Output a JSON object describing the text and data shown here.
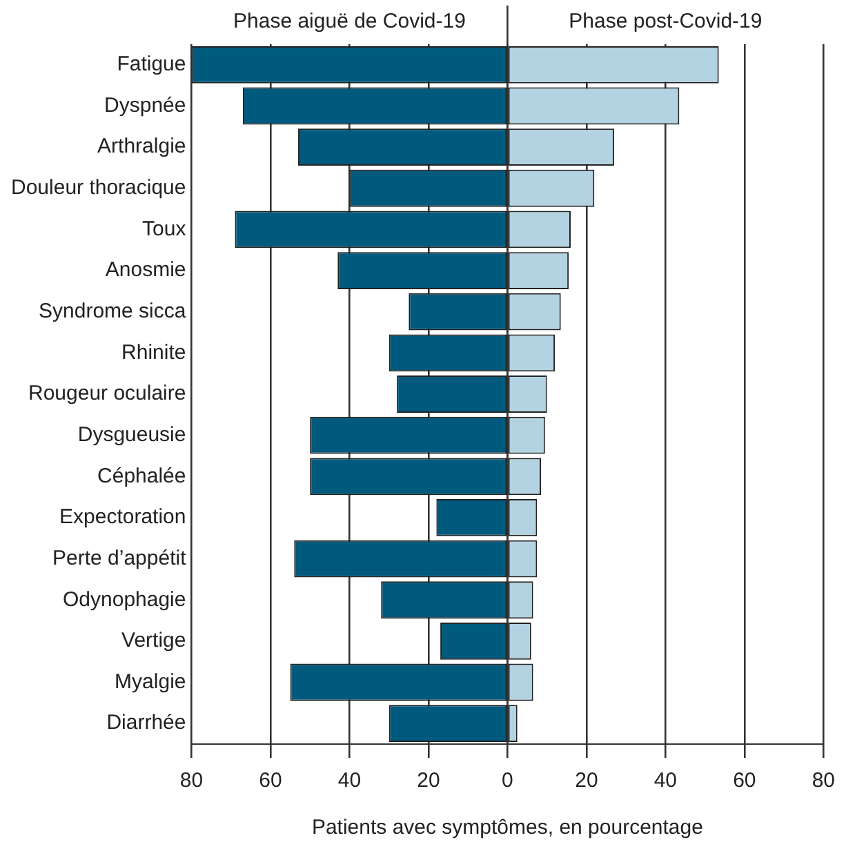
{
  "chart_data": {
    "type": "bar",
    "orientation": "horizontal",
    "stacked": true,
    "xlabel": "Patients avec symptômes, en pourcentage",
    "categories": [
      "Fatigue",
      "Dyspnée",
      "Arthralgie",
      "Douleur thoracique",
      "Toux",
      "Anosmie",
      "Syndrome sicca",
      "Rhinite",
      "Rougeur oculaire",
      "Dysgueusie",
      "Céphalée",
      "Expectoration",
      "Perte d’appétit",
      "Odynophagie",
      "Vertige",
      "Myalgie",
      "Diarrhée"
    ],
    "series": [
      {
        "name": "Phase aiguë de Covid-19",
        "color": "#005a7e",
        "values": [
          -80,
          -67,
          -53,
          -40,
          -69,
          -43,
          -25,
          -30,
          -28,
          -50,
          -50,
          -18,
          -54,
          -32,
          -17,
          -55,
          -30
        ]
      },
      {
        "name": "Phase post-Covid-19",
        "color": "#b3d3e2",
        "values": [
          53.5,
          43.5,
          27,
          22,
          16,
          15.5,
          13.5,
          12,
          10,
          9.5,
          8.5,
          7.5,
          7.5,
          6.5,
          6,
          6.5,
          2.5
        ]
      }
    ],
    "xlim": [
      -80,
      80
    ],
    "xticks": [
      {
        "value": -80,
        "label": "80"
      },
      {
        "value": -60,
        "label": "60"
      },
      {
        "value": -40,
        "label": "40"
      },
      {
        "value": -20,
        "label": "20"
      },
      0,
      20,
      40,
      60,
      80
    ],
    "grid": "x",
    "legend": "top"
  }
}
